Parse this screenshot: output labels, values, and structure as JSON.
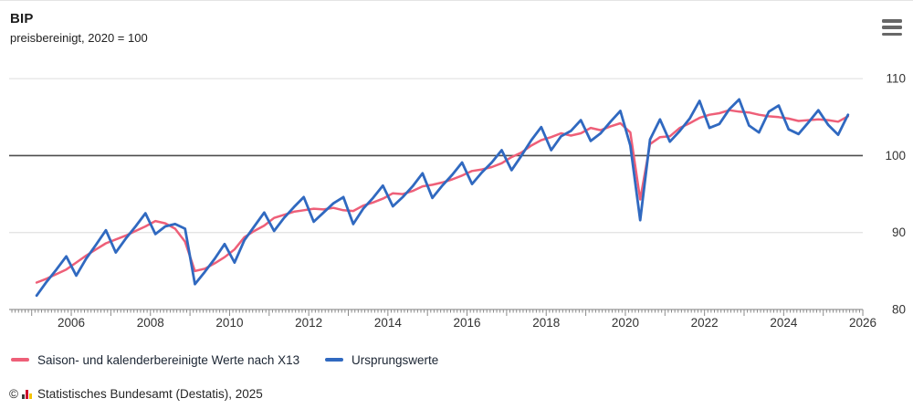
{
  "header": {
    "title": "BIP",
    "subtitle": "preisbereinigt, 2020 = 100",
    "menu_icon": "hamburger-menu-icon"
  },
  "chart_data": {
    "type": "line",
    "title": "BIP",
    "subtitle": "preisbereinigt, 2020 = 100",
    "x_unit": "quarter",
    "x_axis": {
      "start": 2005,
      "end": 2026,
      "label_years": [
        2006,
        2008,
        2010,
        2012,
        2014,
        2016,
        2018,
        2020,
        2022,
        2024,
        2026
      ],
      "minor_tick": "monthly"
    },
    "y_axis": {
      "min": 80,
      "max": 110,
      "ticks": [
        80,
        90,
        100,
        110
      ],
      "reference_value": 100
    },
    "grid": "horizontal-only",
    "legend_position": "bottom-left",
    "categories": [
      "2005 Q1",
      "2005 Q2",
      "2005 Q3",
      "2005 Q4",
      "2006 Q1",
      "2006 Q2",
      "2006 Q3",
      "2006 Q4",
      "2007 Q1",
      "2007 Q2",
      "2007 Q3",
      "2007 Q4",
      "2008 Q1",
      "2008 Q2",
      "2008 Q3",
      "2008 Q4",
      "2009 Q1",
      "2009 Q2",
      "2009 Q3",
      "2009 Q4",
      "2010 Q1",
      "2010 Q2",
      "2010 Q3",
      "2010 Q4",
      "2011 Q1",
      "2011 Q2",
      "2011 Q3",
      "2011 Q4",
      "2012 Q1",
      "2012 Q2",
      "2012 Q3",
      "2012 Q4",
      "2013 Q1",
      "2013 Q2",
      "2013 Q3",
      "2013 Q4",
      "2014 Q1",
      "2014 Q2",
      "2014 Q3",
      "2014 Q4",
      "2015 Q1",
      "2015 Q2",
      "2015 Q3",
      "2015 Q4",
      "2016 Q1",
      "2016 Q2",
      "2016 Q3",
      "2016 Q4",
      "2017 Q1",
      "2017 Q2",
      "2017 Q3",
      "2017 Q4",
      "2018 Q1",
      "2018 Q2",
      "2018 Q3",
      "2018 Q4",
      "2019 Q1",
      "2019 Q2",
      "2019 Q3",
      "2019 Q4",
      "2020 Q1",
      "2020 Q2",
      "2020 Q3",
      "2020 Q4",
      "2021 Q1",
      "2021 Q2",
      "2021 Q3",
      "2021 Q4",
      "2022 Q1",
      "2022 Q2",
      "2022 Q3",
      "2022 Q4",
      "2023 Q1",
      "2023 Q2",
      "2023 Q3",
      "2023 Q4",
      "2024 Q1",
      "2024 Q2",
      "2024 Q3",
      "2024 Q4",
      "2025 Q1",
      "2025 Q2",
      "2025 Q3"
    ],
    "series": [
      {
        "name": "Saison- und kalenderbereinigte Werte nach X13",
        "color": "#ee5f78",
        "values": [
          83.5,
          84.0,
          84.6,
          85.2,
          86.1,
          87.0,
          87.8,
          88.6,
          89.1,
          89.6,
          90.2,
          90.8,
          91.5,
          91.2,
          90.5,
          88.8,
          85.0,
          85.3,
          86.0,
          86.8,
          87.8,
          89.4,
          90.2,
          90.9,
          91.9,
          92.3,
          92.7,
          92.9,
          93.1,
          93.0,
          93.2,
          92.9,
          92.8,
          93.5,
          93.9,
          94.4,
          95.1,
          95.0,
          95.4,
          96.0,
          96.2,
          96.5,
          96.9,
          97.4,
          98.0,
          98.2,
          98.5,
          99.0,
          99.8,
          100.4,
          101.3,
          102.0,
          102.4,
          102.9,
          102.6,
          102.9,
          103.6,
          103.3,
          103.8,
          104.2,
          103.0,
          94.3,
          101.5,
          102.4,
          102.5,
          103.6,
          104.2,
          104.9,
          105.3,
          105.5,
          105.9,
          105.7,
          105.6,
          105.3,
          105.1,
          105.0,
          104.8,
          104.5,
          104.6,
          104.7,
          104.6,
          104.4,
          105.1
        ]
      },
      {
        "name": "Ursprungswerte",
        "color": "#3069c0",
        "values": [
          81.8,
          83.6,
          85.2,
          86.9,
          84.4,
          86.6,
          88.4,
          90.3,
          87.4,
          89.2,
          90.8,
          92.5,
          89.8,
          90.8,
          91.1,
          90.5,
          83.3,
          84.9,
          86.6,
          88.5,
          86.1,
          89.0,
          90.8,
          92.6,
          90.2,
          91.9,
          93.3,
          94.6,
          91.4,
          92.6,
          93.8,
          94.6,
          91.1,
          93.1,
          94.5,
          96.1,
          93.4,
          94.6,
          96.0,
          97.7,
          94.5,
          96.1,
          97.5,
          99.1,
          96.3,
          97.8,
          99.1,
          100.7,
          98.1,
          100.0,
          102.0,
          103.7,
          100.7,
          102.5,
          103.2,
          104.6,
          101.9,
          102.9,
          104.4,
          105.8,
          101.3,
          91.6,
          102.1,
          104.7,
          101.8,
          103.2,
          104.8,
          107.1,
          103.6,
          104.1,
          106.0,
          107.3,
          103.9,
          103.0,
          105.7,
          106.5,
          103.4,
          102.8,
          104.3,
          105.9,
          104.0,
          102.7,
          105.3
        ]
      }
    ],
    "colors": {
      "grid_light": "#e4e4e4",
      "reference_line": "#4d4d4d",
      "axis_line": "#a8a8a8",
      "tick": "#8a8a8a",
      "axis_label": "#333333"
    }
  },
  "legend": {
    "items": [
      {
        "label": "Saison- und kalenderbereinigte Werte nach X13"
      },
      {
        "label": "Ursprungswerte"
      }
    ]
  },
  "footer": {
    "copyright": "©",
    "logo_icon": "destatis-bar-chart-icon",
    "text": "Statistisches Bundesamt (Destatis), 2025"
  }
}
